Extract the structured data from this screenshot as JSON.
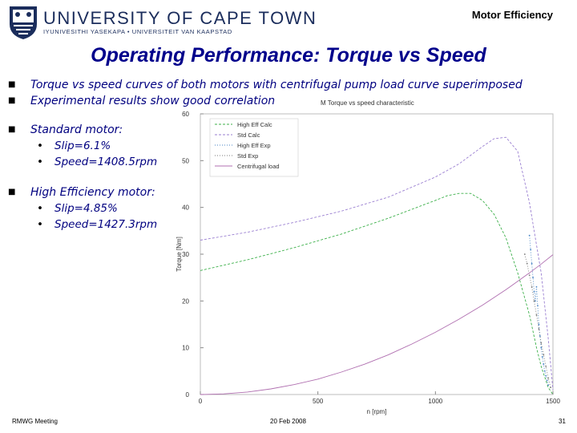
{
  "header": {
    "institution": "UNIVERSITY OF CAPE TOWN",
    "institution_sub": "IYUNIVESITHI YASEKAPA • UNIVERSITEIT VAN KAAPSTAD",
    "topic": "Motor Efficiency"
  },
  "slide": {
    "title": "Operating Performance: Torque vs Speed",
    "bullets": [
      "Torque vs speed curves of both motors with centrifugal pump load curve superimposed",
      "Experimental results show good correlation",
      "Standard motor:",
      "High Efficiency motor:"
    ],
    "standard_sub": [
      "Slip=6.1%",
      "Speed=1408.5rpm"
    ],
    "high_eff_sub": [
      "Slip=4.85%",
      "Speed=1427.3rpm"
    ]
  },
  "footer": {
    "left": "RMWG Meeting",
    "center": "20 Feb 2008",
    "page": "31"
  },
  "chart_data": {
    "type": "line",
    "title": "M Torque vs speed characteristic",
    "xlabel": "n [rpm]",
    "ylabel": "Torque [Nm]",
    "xlim": [
      0,
      1500
    ],
    "ylim": [
      0,
      60
    ],
    "xticks": [
      0,
      500,
      1000,
      1500
    ],
    "yticks": [
      0,
      10,
      20,
      30,
      40,
      50,
      60
    ],
    "grid": false,
    "legend_position": "top-left",
    "series": [
      {
        "name": "High Eff Calc",
        "color": "#3cb04a",
        "style": "dashed",
        "x": [
          0,
          200,
          400,
          600,
          800,
          900,
          1000,
          1050,
          1100,
          1150,
          1200,
          1250,
          1300,
          1350,
          1400,
          1430,
          1450,
          1480,
          1500
        ],
        "y": [
          26.5,
          28.8,
          31.4,
          34.3,
          37.7,
          39.6,
          41.5,
          42.5,
          43.0,
          43.0,
          41.5,
          38.5,
          33.5,
          26.0,
          17.0,
          10.0,
          6.0,
          1.5,
          0
        ]
      },
      {
        "name": "Std Calc",
        "color": "#9a7fd1",
        "style": "dashed",
        "x": [
          0,
          200,
          400,
          600,
          800,
          1000,
          1100,
          1200,
          1250,
          1300,
          1350,
          1400,
          1420,
          1450,
          1480,
          1500
        ],
        "y": [
          33.0,
          34.7,
          36.8,
          39.2,
          42.2,
          46.5,
          49.3,
          53.0,
          54.7,
          55.0,
          52.0,
          41.0,
          35.0,
          26.0,
          12.0,
          1.0
        ]
      },
      {
        "name": "High Eff Exp",
        "color": "#4a86c6",
        "style": "dotted",
        "x": [
          1400,
          1405,
          1410,
          1415,
          1420,
          1425,
          1430,
          1435,
          1440,
          1445,
          1450,
          1455,
          1460,
          1465,
          1470,
          1475,
          1480
        ],
        "y": [
          34.0,
          31.0,
          28.0,
          25.0,
          22.0,
          20.0,
          23.0,
          19.0,
          15.0,
          12.5,
          10.0,
          8.0,
          6.5,
          5.0,
          4.0,
          3.0,
          2.0
        ]
      },
      {
        "name": "Std Exp",
        "color": "#7d7d7d",
        "style": "dotted",
        "x": [
          1380,
          1390,
          1400,
          1410,
          1420,
          1430,
          1440,
          1450,
          1460,
          1470,
          1480,
          1490
        ],
        "y": [
          30.0,
          28.0,
          25.5,
          23.0,
          20.0,
          17.0,
          14.0,
          11.0,
          8.5,
          6.0,
          3.5,
          1.5
        ]
      },
      {
        "name": "Centrifugal load",
        "color": "#b06fb0",
        "style": "solid",
        "x": [
          0,
          100,
          200,
          300,
          400,
          500,
          600,
          700,
          800,
          900,
          1000,
          1100,
          1200,
          1300,
          1400,
          1450,
          1500
        ],
        "y": [
          0,
          0.13,
          0.53,
          1.2,
          2.13,
          3.3,
          4.8,
          6.5,
          8.5,
          10.8,
          13.3,
          16.1,
          19.1,
          22.4,
          26.0,
          27.9,
          29.9
        ]
      }
    ]
  }
}
